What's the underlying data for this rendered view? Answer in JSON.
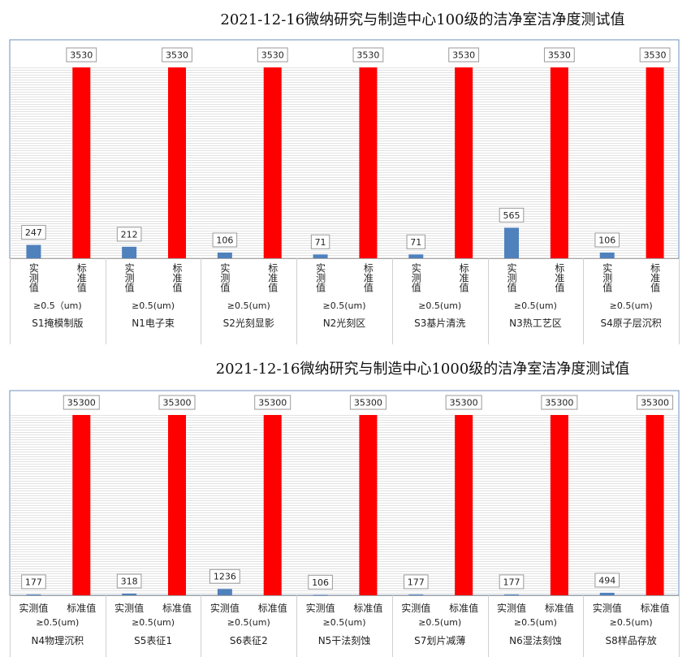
{
  "chart_data": [
    {
      "type": "bar",
      "title": "2021-12-16微纳研究与制造中心100级的洁净室洁净度测试值",
      "categories": [
        "S1掩模制版",
        "N1电子束",
        "S2光刻显影",
        "N2光刻区",
        "S3基片清洗",
        "N3热工艺区",
        "S4原子层沉积"
      ],
      "particle_sizes": [
        "≥0.5（um)",
        "≥0.5(um)",
        "≥0.5(um)",
        "≥0.5(um)",
        "≥0.5(um)",
        "≥0.5(um)",
        "≥0.5(um)"
      ],
      "series": [
        {
          "name": "实测值",
          "values": [
            247,
            212,
            106,
            71,
            71,
            565,
            106
          ],
          "color": "#4f81bd"
        },
        {
          "name": "标准值",
          "values": [
            3530,
            3530,
            3530,
            3530,
            3530,
            3530,
            3530
          ],
          "color": "#ff0000"
        }
      ],
      "ylim": [
        0,
        3530
      ],
      "grid": true,
      "series_label_orientation": "vertical"
    },
    {
      "type": "bar",
      "title": "2021-12-16微纳研究与制造中心1000级的洁净室洁净度测试值",
      "categories": [
        "N4物理沉积",
        "S5表征1",
        "S6表征2",
        "N5干法刻蚀",
        "S7划片减薄",
        "N6湿法刻蚀",
        "S8样品存放"
      ],
      "particle_sizes": [
        "≥0.5(um)",
        "≥0.5(um)",
        "≥0.5(um)",
        "≥0.5(um)",
        "≥0.5(um)",
        "≥0.5(um)",
        "≥0.5(um)"
      ],
      "series": [
        {
          "name": "实测值",
          "values": [
            177,
            318,
            1236,
            106,
            177,
            177,
            494
          ],
          "color": "#4f81bd"
        },
        {
          "name": "标准值",
          "values": [
            35300,
            35300,
            35300,
            35300,
            35300,
            35300,
            35300
          ],
          "color": "#ff0000"
        }
      ],
      "ylim": [
        0,
        35300
      ],
      "grid": true,
      "series_label_orientation": "horizontal"
    }
  ]
}
